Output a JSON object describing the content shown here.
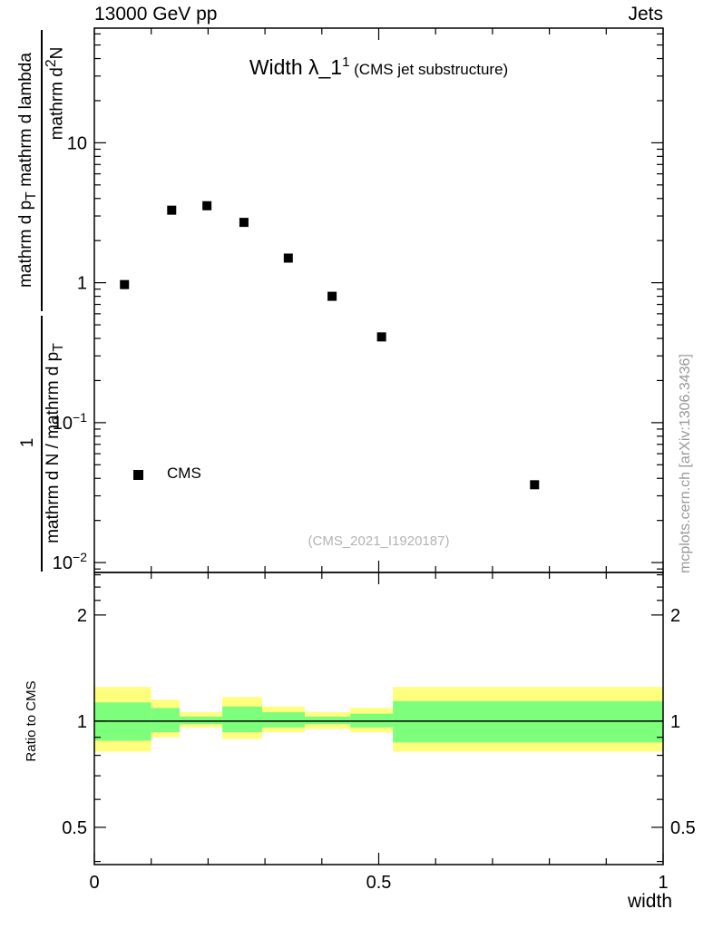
{
  "header": {
    "left": "13000 GeV pp",
    "right": "Jets"
  },
  "title": {
    "prefix": "Width λ_1",
    "superscript": "1",
    "suffix": " (CMS jet substructure)"
  },
  "legend": {
    "label": "CMS"
  },
  "watermark": "(CMS_2021_I1920187)",
  "attribution": "mcplots.cern.ch [arXiv:1306.3436]",
  "axis_labels": {
    "x": "width",
    "ratio_y": "Ratio to CMS",
    "y_upper_num": {
      "a": "mathrm d",
      "sup": "2",
      "b": "N"
    },
    "y_upper_den": {
      "a": "mathrm d p",
      "sub": "T",
      "b": " mathrm d lambda"
    },
    "y_lower_num": "1",
    "y_lower_den": {
      "a": "mathrm d N / mathrm d p",
      "sub": "T"
    }
  },
  "chart_data": {
    "type": "scatter",
    "title": "Width λ_1^1 (CMS jet substructure)",
    "xlabel": "width",
    "ylabel": "1 / (mathrm d N / mathrm d p_T) · mathrm d²N / (mathrm d p_T mathrm d lambda)",
    "xlim": [
      0,
      1
    ],
    "xticks": [
      {
        "v": 0,
        "t": "0"
      },
      {
        "v": 0.5,
        "t": "0.5"
      },
      {
        "v": 1,
        "t": "1"
      }
    ],
    "minor_xtick_step": 0.1,
    "main_panel": {
      "yscale": "log",
      "ylim": [
        0.0085,
        66
      ],
      "yticks": [
        {
          "v": 10,
          "t": "10",
          "e": null
        },
        {
          "v": 1,
          "t": "1",
          "e": null
        },
        {
          "v": 0.1,
          "t": "10",
          "e": "−1"
        },
        {
          "v": 0.01,
          "t": "10",
          "e": "−2"
        }
      ],
      "points": [
        {
          "x": 0.053,
          "y": 0.97
        },
        {
          "x": 0.136,
          "y": 3.3
        },
        {
          "x": 0.198,
          "y": 3.55
        },
        {
          "x": 0.263,
          "y": 2.7
        },
        {
          "x": 0.341,
          "y": 1.5
        },
        {
          "x": 0.418,
          "y": 0.8
        },
        {
          "x": 0.505,
          "y": 0.41
        },
        {
          "x": 0.774,
          "y": 0.036
        }
      ],
      "legend_marker": {
        "x": 0.077,
        "y": 0.042
      }
    },
    "ratio_panel": {
      "yscale": "log",
      "ylim": [
        0.392,
        2.64
      ],
      "yticks": [
        {
          "v": 0.5,
          "t": "0.5"
        },
        {
          "v": 1,
          "t": "1"
        },
        {
          "v": 2,
          "t": "2"
        }
      ],
      "minor_yticks": [
        0.4,
        0.6,
        0.7,
        0.8,
        0.9,
        2.2,
        2.4,
        2.6
      ],
      "reference_line": 1,
      "bands": [
        {
          "xlo": 0.0,
          "xhi": 0.1,
          "total": [
            0.82,
            1.25
          ],
          "stat": [
            0.88,
            1.13
          ]
        },
        {
          "xlo": 0.1,
          "xhi": 0.15,
          "total": [
            0.9,
            1.15
          ],
          "stat": [
            0.93,
            1.09
          ]
        },
        {
          "xlo": 0.15,
          "xhi": 0.225,
          "total": [
            0.96,
            1.06
          ],
          "stat": [
            0.98,
            1.03
          ]
        },
        {
          "xlo": 0.225,
          "xhi": 0.295,
          "total": [
            0.89,
            1.17
          ],
          "stat": [
            0.93,
            1.1
          ]
        },
        {
          "xlo": 0.295,
          "xhi": 0.37,
          "total": [
            0.93,
            1.1
          ],
          "stat": [
            0.96,
            1.06
          ]
        },
        {
          "xlo": 0.37,
          "xhi": 0.45,
          "total": [
            0.95,
            1.06
          ],
          "stat": [
            0.98,
            1.03
          ]
        },
        {
          "xlo": 0.45,
          "xhi": 0.525,
          "total": [
            0.93,
            1.09
          ],
          "stat": [
            0.96,
            1.05
          ]
        },
        {
          "xlo": 0.525,
          "xhi": 1.0,
          "total": [
            0.82,
            1.25
          ],
          "stat": [
            0.87,
            1.14
          ]
        }
      ]
    },
    "colors": {
      "band_total": "#ffff7d",
      "band_stat": "#7dff7d",
      "marker": "#000000",
      "frame": "#000000"
    }
  }
}
